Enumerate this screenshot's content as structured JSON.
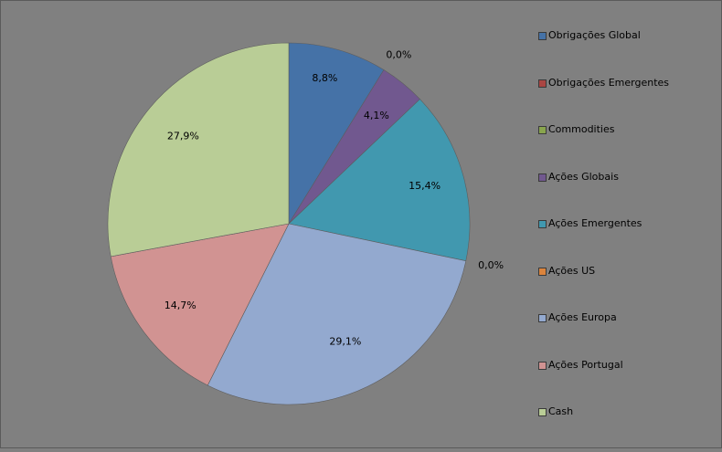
{
  "chart_data": {
    "type": "pie",
    "title": "",
    "categories": [
      "Obrigações Global",
      "Obrigações Emergentes",
      "Commodities",
      "Ações Globais",
      "Ações Emergentes",
      "Ações US",
      "Ações Europa",
      "Ações Portugal",
      "Cash"
    ],
    "values": [
      8.8,
      0.0,
      0.0,
      4.1,
      15.4,
      0.0,
      29.1,
      14.7,
      27.9
    ],
    "value_labels": [
      "8,8%",
      "0,0%",
      "",
      "4,1%",
      "15,4%",
      "0,0%",
      "29,1%",
      "14,7%",
      "27,9%"
    ],
    "colors": [
      "#4572A7",
      "#AA4643",
      "#89A54E",
      "#71588F",
      "#4198AF",
      "#DB843D",
      "#93A9CF",
      "#D19392",
      "#B9CD96"
    ],
    "legend_position": "right",
    "start_angle_deg": 0,
    "direction": "clockwise"
  }
}
